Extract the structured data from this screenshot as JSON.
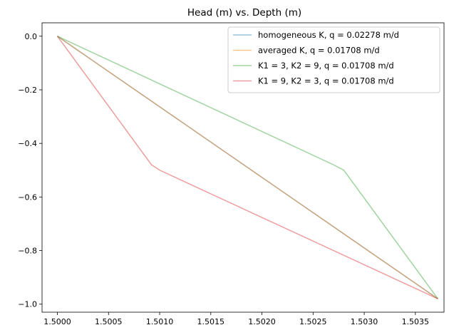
{
  "chart_data": {
    "type": "line",
    "title": "Head (m) vs. Depth (m)",
    "xlabel": "",
    "ylabel": "",
    "xlim": [
      1.49985,
      1.50378
    ],
    "ylim": [
      -1.03,
      0.05
    ],
    "x_ticks": [
      1.5,
      1.5005,
      1.501,
      1.5015,
      1.502,
      1.5025,
      1.503,
      1.5035
    ],
    "x_tick_labels": [
      "1.5000",
      "1.5005",
      "1.5010",
      "1.5015",
      "1.5020",
      "1.5025",
      "1.5030",
      "1.5035"
    ],
    "y_ticks": [
      0.0,
      -0.2,
      -0.4,
      -0.6,
      -0.8,
      -1.0
    ],
    "y_tick_labels": [
      "0.0",
      "−0.2",
      "−0.4",
      "−0.6",
      "−0.8",
      "−1.0"
    ],
    "grid": false,
    "legend_position": "top-right",
    "series": [
      {
        "name": "homogeneous K, q = 0.02278 m/d",
        "color": "#1f77b4",
        "points": [
          [
            1.5,
            0.0
          ],
          [
            1.50372,
            -0.98
          ]
        ]
      },
      {
        "name": "averaged K, q = 0.01708 m/d",
        "color": "#ff7f0e",
        "points": [
          [
            1.5,
            0.0
          ],
          [
            1.50372,
            -0.98
          ]
        ]
      },
      {
        "name": "K1 = 3, K2 = 9, q = 0.01708 m/d",
        "color": "#2ca02c",
        "points": [
          [
            1.5,
            0.0
          ],
          [
            1.5027,
            -0.48
          ],
          [
            1.5028,
            -0.5
          ],
          [
            1.50372,
            -0.98
          ]
        ]
      },
      {
        "name": "K1 = 9, K2 = 3, q = 0.01708 m/d",
        "color": "#d62728",
        "points": [
          [
            1.5,
            0.0
          ],
          [
            1.50092,
            -0.48
          ],
          [
            1.501,
            -0.5
          ],
          [
            1.50372,
            -0.98
          ]
        ]
      }
    ]
  }
}
